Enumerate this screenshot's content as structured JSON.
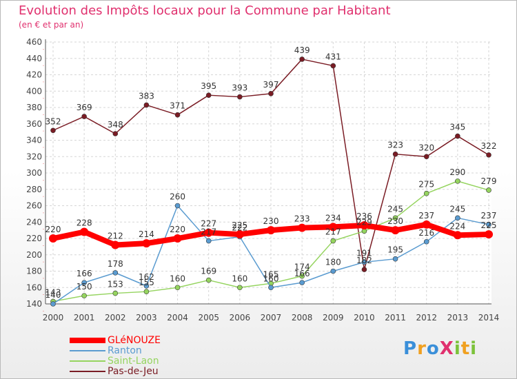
{
  "title": "Evolution des Impôts locaux pour la Commune par Habitant",
  "subtitle": "(en € et par an)",
  "logo": {
    "text": "ProXiti",
    "colors": [
      "#3a8fd9",
      "#f0a020",
      "#e0306e",
      "#7cc23a"
    ]
  },
  "chart_data": {
    "type": "line",
    "title": "Evolution des Impôts locaux pour la Commune par Habitant",
    "subtitle": "(en € et par an)",
    "xlabel": "",
    "ylabel": "",
    "x": [
      "2000",
      "2001",
      "2002",
      "2003",
      "2004",
      "2005",
      "2006",
      "2007",
      "2008",
      "2009",
      "2010",
      "2011",
      "2012",
      "2013",
      "2014"
    ],
    "yticks": [
      140,
      160,
      180,
      200,
      220,
      240,
      260,
      280,
      300,
      320,
      340,
      360,
      380,
      400,
      420,
      440,
      460
    ],
    "ylim": [
      140,
      460
    ],
    "grid": true,
    "legend_placement": "bottom-left",
    "series": [
      {
        "name": "GLéNOUZE",
        "color": "#ff0000",
        "values": [
          220,
          228,
          212,
          214,
          220,
          227,
          225,
          230,
          233,
          234,
          236,
          230,
          237,
          224,
          225
        ]
      },
      {
        "name": "Ranton",
        "color": "#5a9bd0",
        "values": [
          140,
          166,
          178,
          162,
          260,
          217,
          222,
          160,
          166,
          180,
          191,
          195,
          216,
          245,
          237
        ]
      },
      {
        "name": "Saint-Laon",
        "color": "#95d45f",
        "values": [
          143,
          150,
          153,
          155,
          160,
          169,
          160,
          165,
          174,
          217,
          229,
          245,
          275,
          290,
          279
        ]
      },
      {
        "name": "Pas-de-Jeu",
        "color": "#7a1c24",
        "values": [
          352,
          369,
          348,
          383,
          371,
          395,
          393,
          397,
          439,
          431,
          182,
          323,
          320,
          345,
          322
        ]
      }
    ]
  }
}
